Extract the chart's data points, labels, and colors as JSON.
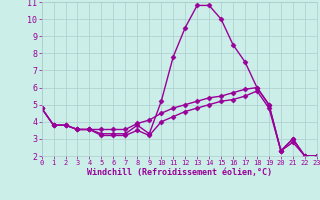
{
  "xlabel": "Windchill (Refroidissement éolien,°C)",
  "xlim": [
    0,
    23
  ],
  "ylim": [
    2,
    11
  ],
  "yticks": [
    2,
    3,
    4,
    5,
    6,
    7,
    8,
    9,
    10,
    11
  ],
  "xticks": [
    0,
    1,
    2,
    3,
    4,
    5,
    6,
    7,
    8,
    9,
    10,
    11,
    12,
    13,
    14,
    15,
    16,
    17,
    18,
    19,
    20,
    21,
    22,
    23
  ],
  "background_color": "#cceee8",
  "grid_color": "#aacccc",
  "line_color": "#990099",
  "line_width": 1.0,
  "marker": "D",
  "marker_size": 2.5,
  "series1_x": [
    0,
    1,
    2,
    3,
    4,
    5,
    6,
    7,
    8,
    9,
    10,
    11,
    12,
    13,
    14,
    15,
    16,
    17,
    18,
    19,
    20,
    21,
    22,
    23
  ],
  "series1_y": [
    4.8,
    3.8,
    3.8,
    3.55,
    3.55,
    3.3,
    3.3,
    3.3,
    3.8,
    3.3,
    5.2,
    7.8,
    9.5,
    10.8,
    10.8,
    10.0,
    8.5,
    7.5,
    6.0,
    5.0,
    2.3,
    3.0,
    2.0,
    2.0
  ],
  "series2_x": [
    0,
    1,
    2,
    3,
    4,
    5,
    6,
    7,
    8,
    9,
    10,
    11,
    12,
    13,
    14,
    15,
    16,
    17,
    18,
    19,
    20,
    21,
    22,
    23
  ],
  "series2_y": [
    4.8,
    3.8,
    3.8,
    3.55,
    3.55,
    3.55,
    3.55,
    3.55,
    3.9,
    4.1,
    4.5,
    4.8,
    5.0,
    5.2,
    5.4,
    5.5,
    5.7,
    5.9,
    6.0,
    5.0,
    2.3,
    3.0,
    2.0,
    2.0
  ],
  "series3_x": [
    0,
    1,
    2,
    3,
    4,
    5,
    6,
    7,
    8,
    9,
    10,
    11,
    12,
    13,
    14,
    15,
    16,
    17,
    18,
    19,
    20,
    21,
    22,
    23
  ],
  "series3_y": [
    4.8,
    3.8,
    3.8,
    3.55,
    3.55,
    3.2,
    3.2,
    3.2,
    3.5,
    3.2,
    4.0,
    4.3,
    4.6,
    4.8,
    5.0,
    5.2,
    5.3,
    5.5,
    5.8,
    4.8,
    2.3,
    2.8,
    2.0,
    2.0
  ]
}
